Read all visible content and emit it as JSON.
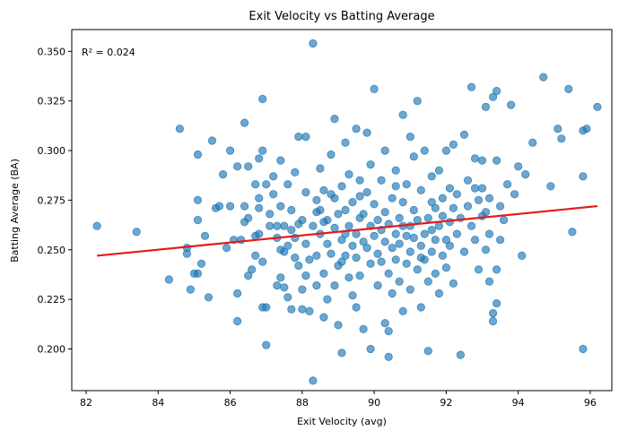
{
  "chart_data": {
    "type": "scatter",
    "title": "Exit Velocity vs Batting Average",
    "xlabel": "Exit Velocity (avg)",
    "ylabel": "Batting Average (BA)",
    "annotation": "R² = 0.024",
    "xlim": [
      81.6,
      96.6
    ],
    "ylim": [
      0.179,
      0.361
    ],
    "xticks": [
      82,
      84,
      86,
      88,
      90,
      92,
      94,
      96
    ],
    "xtick_labels": [
      "82",
      "84",
      "86",
      "88",
      "90",
      "92",
      "94",
      "96"
    ],
    "yticks": [
      0.2,
      0.225,
      0.25,
      0.275,
      0.3,
      0.325,
      0.35
    ],
    "ytick_labels": [
      "0.200",
      "0.225",
      "0.250",
      "0.275",
      "0.300",
      "0.325",
      "0.350"
    ],
    "grid": false,
    "colors": {
      "points": "#1f77b4",
      "fit_line": "#e41a1c"
    },
    "fit_line": {
      "x": [
        82.3,
        96.2
      ],
      "y": [
        0.247,
        0.272
      ]
    },
    "points": [
      [
        82.3,
        0.262
      ],
      [
        83.4,
        0.259
      ],
      [
        84.3,
        0.235
      ],
      [
        84.6,
        0.311
      ],
      [
        84.8,
        0.251
      ],
      [
        84.8,
        0.248
      ],
      [
        84.9,
        0.23
      ],
      [
        85.0,
        0.238
      ],
      [
        85.1,
        0.238
      ],
      [
        85.1,
        0.275
      ],
      [
        85.1,
        0.265
      ],
      [
        85.2,
        0.243
      ],
      [
        85.3,
        0.257
      ],
      [
        85.4,
        0.226
      ],
      [
        85.5,
        0.305
      ],
      [
        85.6,
        0.271
      ],
      [
        85.7,
        0.272
      ],
      [
        85.1,
        0.298
      ],
      [
        85.9,
        0.251
      ],
      [
        86.0,
        0.272
      ],
      [
        86.0,
        0.3
      ],
      [
        86.1,
        0.255
      ],
      [
        86.2,
        0.214
      ],
      [
        86.2,
        0.292
      ],
      [
        86.3,
        0.255
      ],
      [
        86.4,
        0.264
      ],
      [
        86.4,
        0.272
      ],
      [
        86.4,
        0.314
      ],
      [
        86.5,
        0.237
      ],
      [
        86.5,
        0.266
      ],
      [
        86.5,
        0.292
      ],
      [
        86.6,
        0.24
      ],
      [
        86.7,
        0.257
      ],
      [
        86.7,
        0.247
      ],
      [
        86.7,
        0.283
      ],
      [
        86.8,
        0.276
      ],
      [
        86.8,
        0.296
      ],
      [
        86.8,
        0.271
      ],
      [
        86.9,
        0.244
      ],
      [
        86.9,
        0.3
      ],
      [
        86.9,
        0.221
      ],
      [
        86.9,
        0.326
      ],
      [
        87.0,
        0.283
      ],
      [
        87.0,
        0.202
      ],
      [
        87.0,
        0.221
      ],
      [
        87.1,
        0.262
      ],
      [
        87.1,
        0.268
      ],
      [
        87.2,
        0.278
      ],
      [
        87.2,
        0.287
      ],
      [
        87.3,
        0.232
      ],
      [
        87.3,
        0.262
      ],
      [
        87.3,
        0.256
      ],
      [
        87.4,
        0.272
      ],
      [
        87.4,
        0.236
      ],
      [
        87.4,
        0.295
      ],
      [
        87.5,
        0.249
      ],
      [
        87.5,
        0.231
      ],
      [
        87.5,
        0.262
      ],
      [
        87.6,
        0.226
      ],
      [
        87.6,
        0.283
      ],
      [
        87.7,
        0.26
      ],
      [
        87.7,
        0.22
      ],
      [
        87.7,
        0.27
      ],
      [
        87.8,
        0.246
      ],
      [
        87.8,
        0.289
      ],
      [
        87.8,
        0.256
      ],
      [
        87.9,
        0.242
      ],
      [
        87.9,
        0.263
      ],
      [
        87.9,
        0.307
      ],
      [
        88.0,
        0.265
      ],
      [
        88.0,
        0.23
      ],
      [
        88.0,
        0.22
      ],
      [
        88.1,
        0.279
      ],
      [
        88.1,
        0.253
      ],
      [
        88.1,
        0.307
      ],
      [
        88.2,
        0.245
      ],
      [
        88.2,
        0.219
      ],
      [
        88.3,
        0.262
      ],
      [
        88.3,
        0.354
      ],
      [
        88.3,
        0.184
      ],
      [
        88.4,
        0.275
      ],
      [
        88.4,
        0.247
      ],
      [
        88.4,
        0.232
      ],
      [
        88.5,
        0.258
      ],
      [
        88.5,
        0.27
      ],
      [
        88.5,
        0.291
      ],
      [
        88.6,
        0.264
      ],
      [
        88.6,
        0.238
      ],
      [
        88.6,
        0.28
      ],
      [
        88.7,
        0.225
      ],
      [
        88.7,
        0.253
      ],
      [
        88.7,
        0.265
      ],
      [
        88.8,
        0.248
      ],
      [
        88.8,
        0.278
      ],
      [
        88.8,
        0.298
      ],
      [
        88.9,
        0.232
      ],
      [
        88.9,
        0.316
      ],
      [
        88.9,
        0.261
      ],
      [
        89.0,
        0.242
      ],
      [
        89.0,
        0.268
      ],
      [
        89.0,
        0.212
      ],
      [
        89.1,
        0.255
      ],
      [
        89.1,
        0.282
      ],
      [
        89.1,
        0.198
      ],
      [
        89.2,
        0.247
      ],
      [
        89.2,
        0.304
      ],
      [
        89.2,
        0.27
      ],
      [
        89.3,
        0.262
      ],
      [
        89.3,
        0.236
      ],
      [
        89.3,
        0.288
      ],
      [
        89.4,
        0.227
      ],
      [
        89.4,
        0.274
      ],
      [
        89.4,
        0.252
      ],
      [
        89.5,
        0.258
      ],
      [
        89.5,
        0.246
      ],
      [
        89.5,
        0.311
      ],
      [
        89.6,
        0.266
      ],
      [
        89.6,
        0.285
      ],
      [
        89.6,
        0.237
      ],
      [
        89.7,
        0.254
      ],
      [
        89.7,
        0.21
      ],
      [
        89.7,
        0.268
      ],
      [
        89.8,
        0.251
      ],
      [
        89.8,
        0.279
      ],
      [
        89.8,
        0.309
      ],
      [
        89.9,
        0.243
      ],
      [
        89.9,
        0.262
      ],
      [
        89.9,
        0.2
      ],
      [
        90.0,
        0.257
      ],
      [
        90.0,
        0.273
      ],
      [
        90.0,
        0.331
      ],
      [
        90.1,
        0.248
      ],
      [
        90.1,
        0.265
      ],
      [
        90.1,
        0.232
      ],
      [
        90.2,
        0.26
      ],
      [
        90.2,
        0.285
      ],
      [
        90.2,
        0.244
      ],
      [
        90.3,
        0.269
      ],
      [
        90.3,
        0.254
      ],
      [
        90.3,
        0.3
      ],
      [
        90.4,
        0.238
      ],
      [
        90.4,
        0.263
      ],
      [
        90.4,
        0.196
      ],
      [
        90.5,
        0.251
      ],
      [
        90.5,
        0.276
      ],
      [
        90.5,
        0.228
      ],
      [
        90.6,
        0.258
      ],
      [
        90.6,
        0.29
      ],
      [
        90.6,
        0.245
      ],
      [
        90.7,
        0.266
      ],
      [
        90.7,
        0.234
      ],
      [
        90.7,
        0.253
      ],
      [
        90.8,
        0.274
      ],
      [
        90.8,
        0.318
      ],
      [
        90.8,
        0.219
      ],
      [
        90.9,
        0.257
      ],
      [
        90.9,
        0.243
      ],
      [
        90.9,
        0.283
      ],
      [
        91.0,
        0.262
      ],
      [
        91.0,
        0.249
      ],
      [
        91.0,
        0.23
      ],
      [
        91.1,
        0.27
      ],
      [
        91.1,
        0.256
      ],
      [
        91.1,
        0.297
      ],
      [
        91.2,
        0.24
      ],
      [
        91.2,
        0.265
      ],
      [
        91.2,
        0.325
      ],
      [
        91.3,
        0.252
      ],
      [
        91.3,
        0.28
      ],
      [
        91.3,
        0.221
      ],
      [
        91.4,
        0.258
      ],
      [
        91.4,
        0.245
      ],
      [
        91.4,
        0.3
      ],
      [
        91.5,
        0.266
      ],
      [
        91.5,
        0.234
      ],
      [
        91.5,
        0.199
      ],
      [
        91.6,
        0.26
      ],
      [
        91.6,
        0.287
      ],
      [
        91.6,
        0.249
      ],
      [
        91.7,
        0.271
      ],
      [
        91.7,
        0.238
      ],
      [
        91.7,
        0.255
      ],
      [
        91.8,
        0.262
      ],
      [
        91.8,
        0.29
      ],
      [
        91.8,
        0.228
      ],
      [
        91.9,
        0.247
      ],
      [
        91.9,
        0.276
      ],
      [
        91.9,
        0.267
      ],
      [
        92.0,
        0.255
      ],
      [
        92.0,
        0.3
      ],
      [
        92.0,
        0.241
      ],
      [
        92.1,
        0.264
      ],
      [
        92.1,
        0.281
      ],
      [
        92.1,
        0.252
      ],
      [
        92.2,
        0.271
      ],
      [
        92.2,
        0.233
      ],
      [
        92.2,
        0.303
      ],
      [
        92.3,
        0.258
      ],
      [
        92.3,
        0.278
      ],
      [
        92.4,
        0.197
      ],
      [
        92.4,
        0.266
      ],
      [
        92.5,
        0.308
      ],
      [
        92.5,
        0.249
      ],
      [
        92.6,
        0.285
      ],
      [
        92.6,
        0.272
      ],
      [
        92.7,
        0.332
      ],
      [
        92.7,
        0.262
      ],
      [
        92.8,
        0.281
      ],
      [
        92.8,
        0.255
      ],
      [
        92.9,
        0.24
      ],
      [
        92.9,
        0.275
      ],
      [
        93.0,
        0.295
      ],
      [
        93.0,
        0.267
      ],
      [
        93.0,
        0.281
      ],
      [
        93.1,
        0.25
      ],
      [
        93.1,
        0.322
      ],
      [
        93.1,
        0.269
      ],
      [
        93.2,
        0.234
      ],
      [
        93.2,
        0.276
      ],
      [
        93.2,
        0.258
      ],
      [
        93.3,
        0.214
      ],
      [
        93.3,
        0.218
      ],
      [
        93.3,
        0.327
      ],
      [
        93.4,
        0.33
      ],
      [
        93.4,
        0.295
      ],
      [
        93.4,
        0.24
      ],
      [
        93.4,
        0.223
      ],
      [
        93.5,
        0.272
      ],
      [
        93.5,
        0.255
      ],
      [
        93.6,
        0.265
      ],
      [
        93.7,
        0.283
      ],
      [
        93.8,
        0.323
      ],
      [
        93.9,
        0.278
      ],
      [
        94.0,
        0.292
      ],
      [
        94.1,
        0.247
      ],
      [
        94.2,
        0.288
      ],
      [
        94.4,
        0.304
      ],
      [
        94.7,
        0.337
      ],
      [
        94.9,
        0.282
      ],
      [
        95.1,
        0.311
      ],
      [
        95.2,
        0.306
      ],
      [
        95.4,
        0.331
      ],
      [
        95.5,
        0.259
      ],
      [
        95.8,
        0.2
      ],
      [
        95.8,
        0.287
      ],
      [
        95.8,
        0.31
      ],
      [
        95.9,
        0.311
      ],
      [
        96.2,
        0.322
      ],
      [
        85.8,
        0.288
      ],
      [
        86.2,
        0.228
      ],
      [
        87.6,
        0.252
      ],
      [
        88.9,
        0.276
      ],
      [
        89.5,
        0.221
      ],
      [
        90.3,
        0.213
      ],
      [
        91.0,
        0.307
      ],
      [
        90.4,
        0.209
      ],
      [
        89.1,
        0.244
      ],
      [
        88.6,
        0.216
      ],
      [
        87.4,
        0.25
      ],
      [
        91.6,
        0.274
      ],
      [
        92.8,
        0.296
      ],
      [
        89.9,
        0.293
      ],
      [
        90.6,
        0.282
      ],
      [
        88.1,
        0.237
      ],
      [
        86.8,
        0.258
      ],
      [
        89.2,
        0.258
      ],
      [
        90.8,
        0.262
      ],
      [
        91.3,
        0.246
      ],
      [
        89.6,
        0.277
      ],
      [
        88.4,
        0.269
      ]
    ]
  }
}
